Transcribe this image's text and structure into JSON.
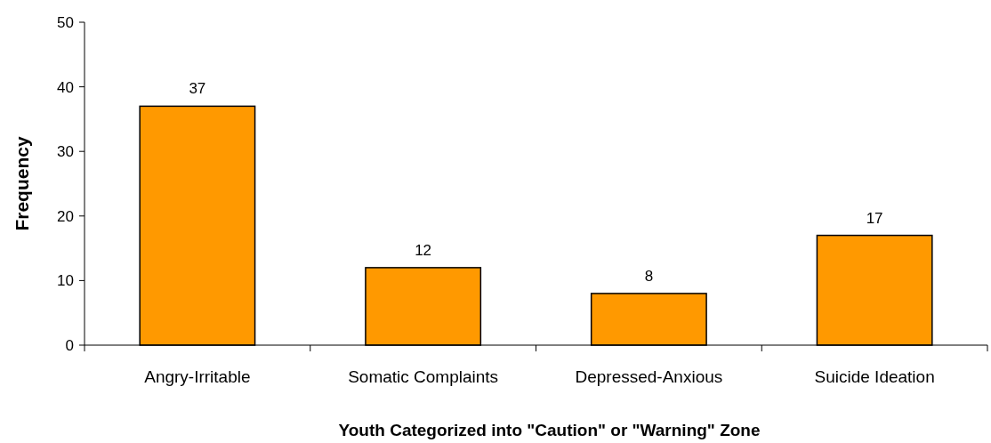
{
  "chart_data": {
    "type": "bar",
    "xlabel": "Youth Categorized into \"Caution\" or \"Warning\" Zone",
    "ylabel": "Frequency",
    "categories": [
      "Angry-Irritable",
      "Somatic Complaints",
      "Depressed-Anxious",
      "Suicide Ideation"
    ],
    "values": [
      37,
      12,
      8,
      17
    ],
    "color": "#ff9900",
    "ylim": [
      0,
      50
    ],
    "yticks": [
      0,
      10,
      20,
      30,
      40,
      50
    ],
    "data_labels": true
  }
}
